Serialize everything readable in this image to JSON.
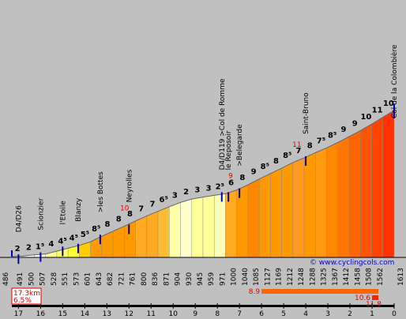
{
  "chart_data": {
    "type": "area",
    "title": "",
    "x_axis": {
      "km_labels": [
        "17",
        "16",
        "15",
        "14",
        "13",
        "12",
        "11",
        "10",
        "9",
        "8",
        "7",
        "6",
        "5",
        "4",
        "3",
        "2",
        "1",
        "0"
      ],
      "start_km": 17.3
    },
    "altitudes": [
      486,
      491,
      500,
      507,
      528,
      551,
      573,
      601,
      643,
      682,
      721,
      761,
      800,
      836,
      871,
      904,
      930,
      945,
      959,
      971,
      1000,
      1040,
      1085,
      1127,
      1169,
      1212,
      1248,
      1288,
      1325,
      1367,
      1412,
      1458,
      1508,
      1562,
      1613
    ],
    "altitude_labels": [
      "491",
      "500",
      "507",
      "528",
      "551",
      "573",
      "601",
      "643",
      "682",
      "721",
      "761",
      "800",
      "836",
      "871",
      "904",
      "930",
      "945",
      "959",
      "971",
      "1000",
      "1040",
      "1085",
      "1127",
      "1169",
      "1212",
      "1248",
      "1288",
      "1325",
      "1367",
      "1412",
      "1458",
      "1508",
      "1562"
    ],
    "start_altitude_label": "486",
    "end_altitude_label": "1613",
    "gradients": [
      "2",
      "2",
      "1⁵",
      "4",
      "4⁵",
      "4⁵",
      "5⁵",
      "8⁵",
      "8",
      "8",
      "8",
      "7",
      "7",
      "6⁵",
      "3",
      "2",
      "3",
      "3",
      "2⁵",
      "6",
      "8",
      "9",
      "8⁵",
      "8",
      "8⁵",
      "7",
      "8",
      "7⁵",
      "8⁵",
      "9",
      "9",
      "10",
      "11",
      "10"
    ],
    "colors": [
      "#ffffff",
      "#ffffff",
      "#ffffff",
      "#ffff99",
      "#ffff66",
      "#ffff33",
      "#ffcc00",
      "#ff9900",
      "#ff9900",
      "#ff9900",
      "#ff9900",
      "#ffaa22",
      "#ffaa22",
      "#ffbb33",
      "#ffffaa",
      "#ffffcc",
      "#ffff99",
      "#ffff99",
      "#ffffbb",
      "#ffaa22",
      "#ff9900",
      "#ff8800",
      "#ff9900",
      "#ff9900",
      "#ff9900",
      "#ff9922",
      "#ff9900",
      "#ff9911",
      "#ff8800",
      "#ff7700",
      "#ff6600",
      "#ff5500",
      "#ff4400",
      "#ff3300"
    ],
    "places": [
      {
        "name": "D4/D26",
        "km": 17.0
      },
      {
        "name": "Scionzier",
        "km": 16.0
      },
      {
        "name": "l'Etoile",
        "km": 15.0
      },
      {
        "name": "Blanzy",
        "km": 14.3
      },
      {
        "name": ">les Bottes",
        "km": 13.3
      },
      {
        "name": "Neyrolles",
        "km": 12.0
      },
      {
        "name": "D4/D119 >Col de Romme",
        "km": 7.8
      },
      {
        "name": "le Reposoir",
        "km": 7.5
      },
      {
        "name": ">Belegarde",
        "km": 7.0
      },
      {
        "name": "Saint-Bruno",
        "km": 4.0
      },
      {
        "name": "Col de la Colombière",
        "km": 0.0
      }
    ],
    "max_km_gradients": [
      {
        "label": "10",
        "km": 12.2
      },
      {
        "label": "9",
        "km": 7.4
      },
      {
        "label": "11",
        "km": 4.4
      }
    ],
    "summary": {
      "distance": "17.3km",
      "avg_gradient": "6.5%"
    },
    "max_bars": [
      {
        "label": "8.9",
        "from_km": 6.0
      },
      {
        "label": "10.6",
        "from_km": 1.0
      },
      {
        "label": "11.8",
        "from_km": 0.5
      }
    ],
    "credit": "© www.cyclingcols.com"
  }
}
